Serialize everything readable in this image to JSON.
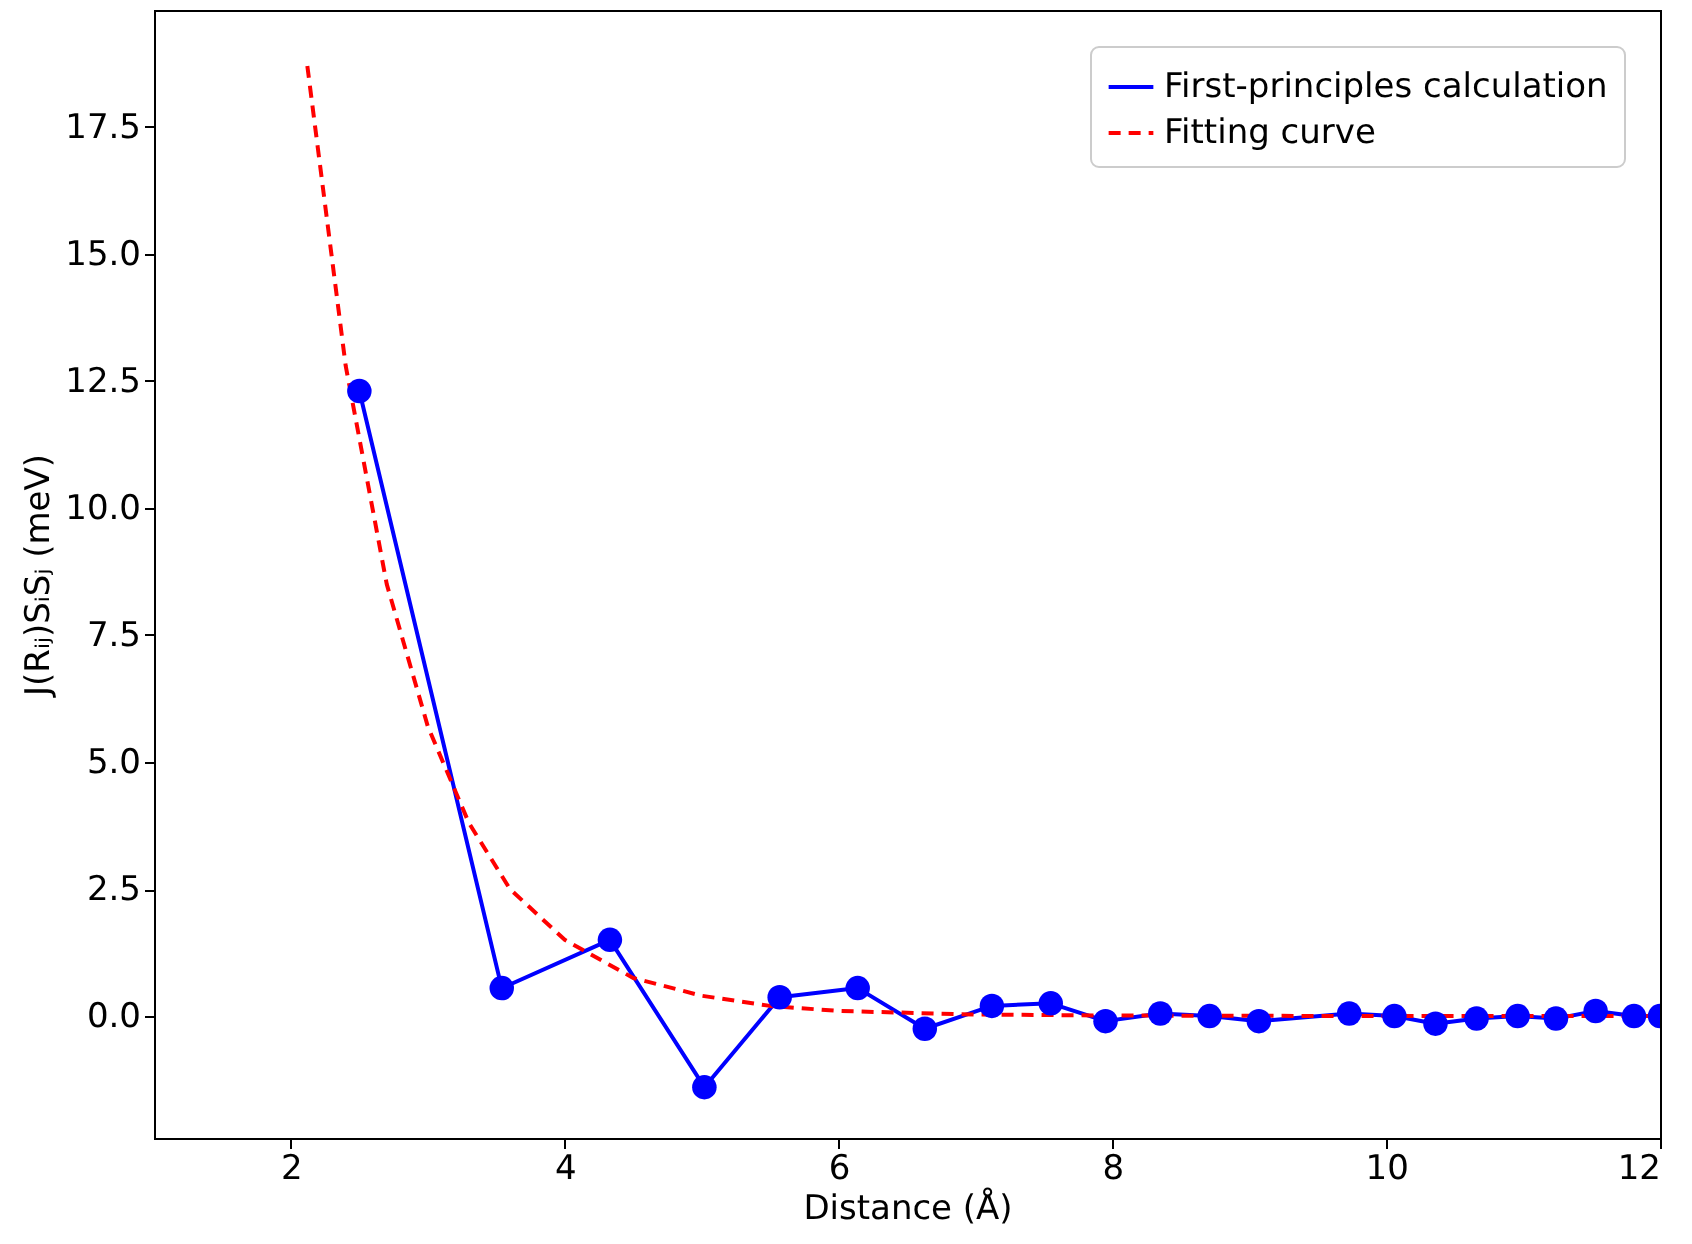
{
  "chart_data": {
    "type": "line",
    "xlabel": "Distance (Å)",
    "ylabel": "J(Rᵢⱼ)SᵢSⱼ (meV)",
    "xlim": [
      1,
      12
    ],
    "xticks": [
      2,
      4,
      6,
      8,
      10,
      12
    ],
    "ylim": [
      -2.4,
      19.8
    ],
    "yticks": [
      {
        "value": 0,
        "label": "0.0"
      },
      2.5,
      {
        "value": 5,
        "label": "5.0"
      },
      7.5,
      {
        "value": 10,
        "label": "10.0"
      },
      12.5,
      {
        "value": 15,
        "label": "15.0"
      },
      17.5
    ],
    "grid": false,
    "legend": "top right",
    "series": [
      {
        "name": "First-principles calculation",
        "color": "#0000ff",
        "marker": "circle",
        "line_style": "solid",
        "x": [
          2.5,
          3.54,
          4.33,
          5.02,
          5.57,
          6.14,
          6.63,
          7.12,
          7.55,
          7.95,
          8.35,
          8.71,
          9.07,
          9.73,
          10.06,
          10.36,
          10.66,
          10.96,
          11.24,
          11.53,
          11.81,
          12.0
        ],
        "values": [
          12.3,
          0.55,
          1.5,
          -1.4,
          0.37,
          0.55,
          -0.25,
          0.2,
          0.25,
          -0.1,
          0.05,
          0,
          -0.1,
          0.05,
          0,
          -0.15,
          -0.05,
          0,
          -0.05,
          0.1,
          0,
          0
        ]
      },
      {
        "name": "Fitting curve",
        "color": "#ff0000",
        "marker": "none",
        "line_style": "dashed",
        "x": [
          2.12,
          2.4,
          2.7,
          3.0,
          3.3,
          3.6,
          4.0,
          4.5,
          5.0,
          5.5,
          6.0,
          7.0,
          8.0,
          10.0,
          12.0
        ],
        "values": [
          18.7,
          12.8,
          8.5,
          5.7,
          3.8,
          2.5,
          1.5,
          0.75,
          0.4,
          0.2,
          0.1,
          0.03,
          0.01,
          0,
          0
        ]
      }
    ]
  }
}
